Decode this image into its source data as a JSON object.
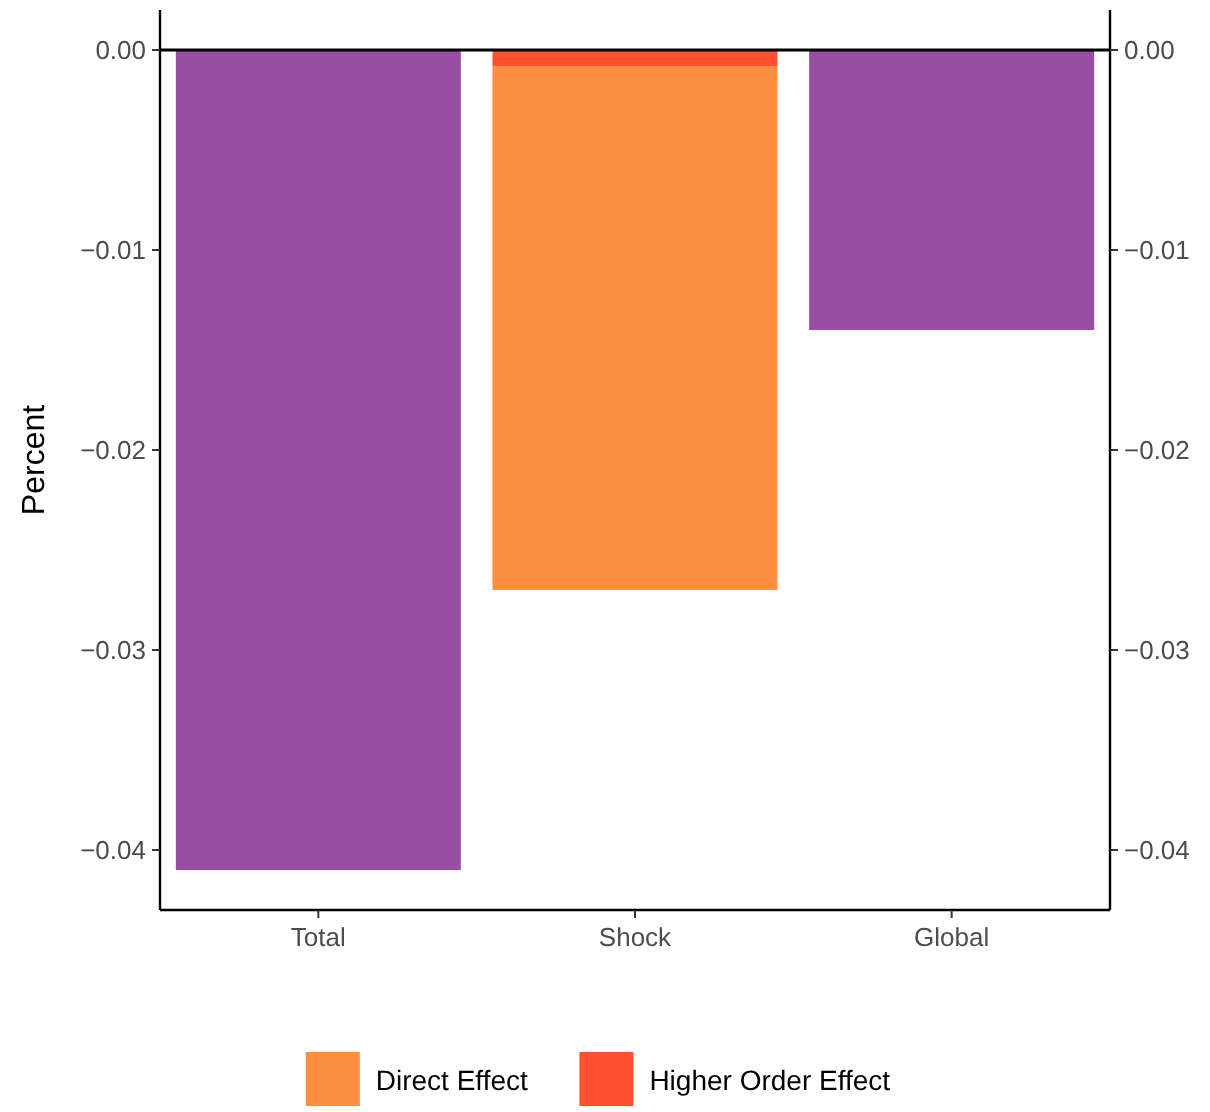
{
  "chart_data": {
    "type": "bar",
    "ylabel": "Percent",
    "categories": [
      "Total",
      "Shock",
      "Global"
    ],
    "stacked": true,
    "series": [
      {
        "name": "Higher Order Effect",
        "color": "#ff5030",
        "values": [
          null,
          -0.0008,
          null
        ]
      },
      {
        "name": "Direct Effect",
        "color": "#fe8f40",
        "values": [
          null,
          -0.0262,
          null
        ]
      },
      {
        "color": "#984ea3",
        "values": [
          -0.041,
          null,
          -0.014
        ]
      }
    ],
    "ylim": [
      -0.043,
      0.002
    ],
    "yticks": [
      {
        "value": 0,
        "label": "0.00"
      },
      {
        "value": -0.01,
        "label": "−0.01"
      },
      {
        "value": -0.02,
        "label": "−0.02"
      },
      {
        "value": -0.03,
        "label": "−0.03"
      },
      {
        "value": -0.04,
        "label": "−0.04"
      }
    ],
    "y2lim": [
      -0.043,
      0.002
    ],
    "y2ticks": [
      {
        "value": 0,
        "label": "0.00"
      },
      {
        "value": -0.01,
        "label": "−0.01"
      },
      {
        "value": -0.02,
        "label": "−0.02"
      },
      {
        "value": -0.03,
        "label": "−0.03"
      },
      {
        "value": -0.04,
        "label": "−0.04"
      }
    ],
    "ref_lines": [
      {
        "axis": "y",
        "value": 0,
        "color": "#000000"
      }
    ],
    "grid": false,
    "legend": "bottom"
  }
}
